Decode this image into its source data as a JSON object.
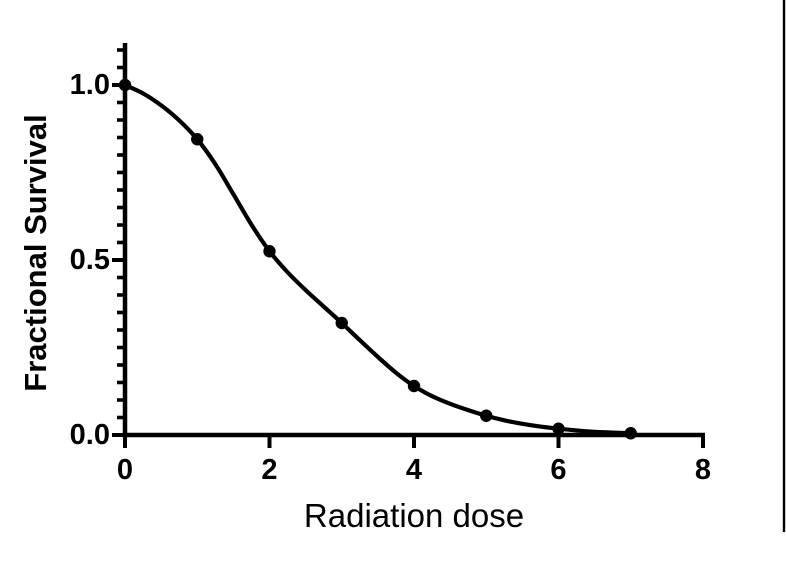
{
  "figure": {
    "background_color": "#ffffff",
    "ink_color": "#000000",
    "page_edge_line": true
  },
  "chart_data": {
    "type": "scatter",
    "title": "",
    "xlabel": "Radiation dose",
    "ylabel": "Fractional Survival",
    "xlim": [
      0,
      8
    ],
    "ylim": [
      0,
      1.12
    ],
    "grid": false,
    "legend": "none",
    "x_tick_values": [
      0,
      2,
      4,
      6,
      8
    ],
    "x_tick_labels": [
      "0",
      "2",
      "4",
      "6",
      "8"
    ],
    "y_major_tick_values": [
      0,
      0.5,
      1.0
    ],
    "y_tick_labels": [
      "0.0",
      "0.5",
      "1.0"
    ],
    "y_minor_tick_step": 0.05,
    "y_minor_tick_max": 1.1,
    "series": [
      {
        "name": "observed-points",
        "style": "filled-circle",
        "x": [
          0,
          1,
          2,
          3,
          4,
          5,
          6,
          7
        ],
        "y": [
          1.0,
          0.845,
          0.525,
          0.32,
          0.14,
          0.055,
          0.018,
          0.005
        ]
      },
      {
        "name": "fitted-curve",
        "style": "smooth-line",
        "samples": [
          [
            0,
            1.0
          ],
          [
            0.25,
            0.976
          ],
          [
            0.5,
            0.942
          ],
          [
            0.75,
            0.899
          ],
          [
            1,
            0.845
          ],
          [
            1.25,
            0.774
          ],
          [
            1.5,
            0.688
          ],
          [
            1.75,
            0.601
          ],
          [
            2,
            0.525
          ],
          [
            2.25,
            0.465
          ],
          [
            2.5,
            0.414
          ],
          [
            2.75,
            0.367
          ],
          [
            3,
            0.32
          ],
          [
            3.25,
            0.271
          ],
          [
            3.5,
            0.223
          ],
          [
            3.75,
            0.178
          ],
          [
            4,
            0.14
          ],
          [
            4.25,
            0.111
          ],
          [
            4.5,
            0.089
          ],
          [
            4.75,
            0.071
          ],
          [
            5,
            0.055
          ],
          [
            5.25,
            0.042
          ],
          [
            5.5,
            0.032
          ],
          [
            5.75,
            0.024
          ],
          [
            6,
            0.018
          ],
          [
            6.25,
            0.013
          ],
          [
            6.5,
            0.009
          ],
          [
            6.75,
            0.007
          ],
          [
            7,
            0.005
          ]
        ]
      }
    ]
  }
}
